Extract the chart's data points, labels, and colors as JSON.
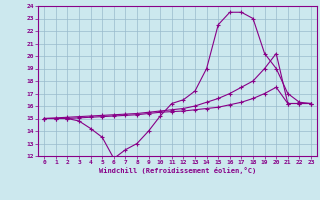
{
  "xlabel": "Windchill (Refroidissement éolien,°C)",
  "bg_color": "#cce8ee",
  "line_color": "#880088",
  "grid_color": "#99bbcc",
  "xlim": [
    -0.5,
    23.5
  ],
  "ylim": [
    12,
    24
  ],
  "xticks": [
    0,
    1,
    2,
    3,
    4,
    5,
    6,
    7,
    8,
    9,
    10,
    11,
    12,
    13,
    14,
    15,
    16,
    17,
    18,
    19,
    20,
    21,
    22,
    23
  ],
  "yticks": [
    12,
    13,
    14,
    15,
    16,
    17,
    18,
    19,
    20,
    21,
    22,
    23,
    24
  ],
  "curve1_x": [
    0,
    1,
    2,
    3,
    4,
    5,
    6,
    7,
    8,
    9,
    10,
    11,
    12,
    13,
    14,
    15,
    16,
    17,
    18,
    19,
    20,
    21,
    22,
    23
  ],
  "curve1_y": [
    15.0,
    15.0,
    15.0,
    14.8,
    14.2,
    13.5,
    11.8,
    12.5,
    13.0,
    14.0,
    15.2,
    16.2,
    16.5,
    17.2,
    19.0,
    22.5,
    23.5,
    23.5,
    23.0,
    20.2,
    19.0,
    17.0,
    16.3,
    16.2
  ],
  "curve2_x": [
    0,
    1,
    2,
    3,
    4,
    5,
    6,
    7,
    8,
    9,
    10,
    11,
    12,
    13,
    14,
    15,
    16,
    17,
    18,
    19,
    20,
    21,
    22,
    23
  ],
  "curve2_y": [
    15.0,
    15.05,
    15.1,
    15.15,
    15.2,
    15.25,
    15.3,
    15.35,
    15.4,
    15.5,
    15.6,
    15.7,
    15.8,
    16.0,
    16.3,
    16.6,
    17.0,
    17.5,
    18.0,
    19.0,
    20.2,
    16.2,
    16.2,
    16.2
  ],
  "curve3_x": [
    0,
    1,
    2,
    3,
    4,
    5,
    6,
    7,
    8,
    9,
    10,
    11,
    12,
    13,
    14,
    15,
    16,
    17,
    18,
    19,
    20,
    21,
    22,
    23
  ],
  "curve3_y": [
    15.0,
    15.0,
    15.0,
    15.05,
    15.1,
    15.15,
    15.2,
    15.25,
    15.3,
    15.4,
    15.5,
    15.55,
    15.6,
    15.7,
    15.8,
    15.9,
    16.1,
    16.3,
    16.6,
    17.0,
    17.5,
    16.2,
    16.2,
    16.2
  ]
}
